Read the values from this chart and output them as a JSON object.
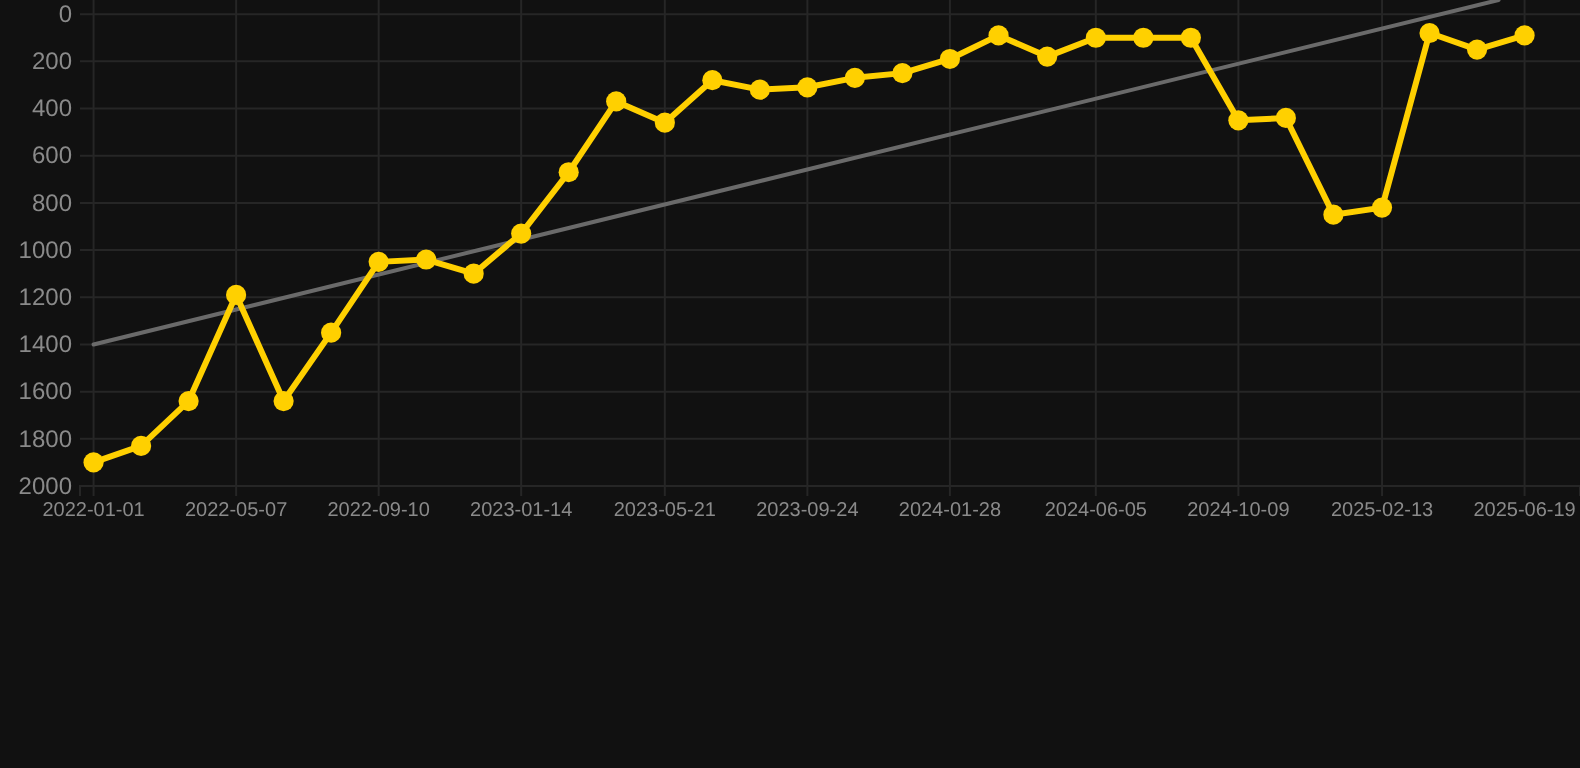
{
  "chart_data": {
    "type": "line",
    "x": [
      "2022-01-01",
      "2022-02-12",
      "2022-03-26",
      "2022-05-07",
      "2022-06-18",
      "2022-07-30",
      "2022-09-10",
      "2022-10-22",
      "2022-12-03",
      "2023-01-14",
      "2023-02-25",
      "2023-04-08",
      "2023-05-21",
      "2023-07-02",
      "2023-08-13",
      "2023-09-24",
      "2023-11-05",
      "2023-12-17",
      "2024-01-28",
      "2024-03-11",
      "2024-04-23",
      "2024-06-05",
      "2024-07-17",
      "2024-08-28",
      "2024-10-09",
      "2024-11-20",
      "2025-01-01",
      "2025-02-13",
      "2025-03-27",
      "2025-05-08",
      "2025-06-19"
    ],
    "series": [
      {
        "color": "#ffd000",
        "marker": "circle",
        "values": [
          1900,
          1830,
          1640,
          1190,
          1640,
          1350,
          1050,
          1040,
          1100,
          930,
          670,
          370,
          460,
          280,
          320,
          310,
          270,
          250,
          190,
          90,
          180,
          100,
          100,
          100,
          450,
          440,
          850,
          820,
          80,
          150,
          90
        ]
      },
      {
        "type": "line",
        "color": "#6a6a6a",
        "marker": "none",
        "x": [
          "2022-01-01",
          "2025-05-27"
        ],
        "values": [
          1400,
          -60
        ]
      }
    ],
    "xlim": [
      "2021-12-20",
      "2025-08-07"
    ],
    "xticks": [
      "2022-01-01",
      "2022-05-07",
      "2022-09-10",
      "2023-01-14",
      "2023-05-21",
      "2023-09-24",
      "2024-01-28",
      "2024-06-05",
      "2024-10-09",
      "2025-02-13",
      "2025-06-19"
    ],
    "ylim": [
      2000,
      -60
    ],
    "yticks": [
      0,
      200,
      400,
      600,
      800,
      1000,
      1200,
      1400,
      1600,
      1800,
      2000
    ],
    "grid": true
  }
}
